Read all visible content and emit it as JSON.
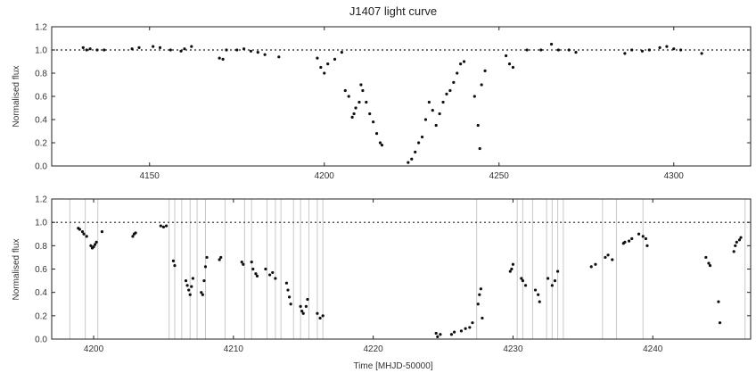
{
  "title": "J1407 light curve",
  "xlabel": "Time [MHJD-50000]",
  "ylabel": "Normalised flux",
  "chart_data": [
    {
      "type": "scatter",
      "title": "J1407 light curve",
      "ylabel": "Normalised flux",
      "xlim": [
        4122,
        4322
      ],
      "ylim": [
        0.0,
        1.2
      ],
      "xticks": [
        4150,
        4200,
        4250,
        4300
      ],
      "yticks": [
        0.0,
        0.2,
        0.4,
        0.6,
        0.8,
        1.0,
        1.2
      ],
      "reference_line": 1.0,
      "series": [
        {
          "points": [
            [
              4131,
              1.02
            ],
            [
              4132,
              1.0
            ],
            [
              4133,
              1.01
            ],
            [
              4135,
              1.0
            ],
            [
              4137,
              1.0
            ],
            [
              4145,
              1.01
            ],
            [
              4147,
              1.02
            ],
            [
              4151,
              1.03
            ],
            [
              4153,
              1.02
            ],
            [
              4156,
              1.0
            ],
            [
              4159,
              0.99
            ],
            [
              4160,
              1.01
            ],
            [
              4162,
              1.03
            ],
            [
              4170,
              0.93
            ],
            [
              4171,
              0.92
            ],
            [
              4172,
              1.0
            ],
            [
              4175,
              1.0
            ],
            [
              4177,
              1.01
            ],
            [
              4179,
              0.99
            ],
            [
              4181,
              0.98
            ],
            [
              4183,
              0.96
            ],
            [
              4187,
              0.94
            ],
            [
              4198,
              0.93
            ],
            [
              4199,
              0.85
            ],
            [
              4200,
              0.8
            ],
            [
              4201,
              0.88
            ],
            [
              4203,
              0.92
            ],
            [
              4205,
              0.98
            ],
            [
              4206,
              0.65
            ],
            [
              4207,
              0.6
            ],
            [
              4208,
              0.42
            ],
            [
              4208.5,
              0.45
            ],
            [
              4209,
              0.5
            ],
            [
              4210,
              0.55
            ],
            [
              4210.5,
              0.7
            ],
            [
              4211,
              0.65
            ],
            [
              4212,
              0.55
            ],
            [
              4213,
              0.45
            ],
            [
              4214,
              0.38
            ],
            [
              4215,
              0.28
            ],
            [
              4216,
              0.2
            ],
            [
              4216.5,
              0.18
            ],
            [
              4224,
              0.03
            ],
            [
              4225,
              0.06
            ],
            [
              4226,
              0.12
            ],
            [
              4227,
              0.2
            ],
            [
              4228,
              0.25
            ],
            [
              4229,
              0.4
            ],
            [
              4230,
              0.55
            ],
            [
              4231,
              0.48
            ],
            [
              4232,
              0.35
            ],
            [
              4233,
              0.45
            ],
            [
              4234,
              0.55
            ],
            [
              4235,
              0.62
            ],
            [
              4236,
              0.65
            ],
            [
              4237,
              0.72
            ],
            [
              4238,
              0.8
            ],
            [
              4239,
              0.88
            ],
            [
              4240,
              0.9
            ],
            [
              4243,
              0.6
            ],
            [
              4244,
              0.35
            ],
            [
              4244.5,
              0.15
            ],
            [
              4245,
              0.7
            ],
            [
              4246,
              0.82
            ],
            [
              4252,
              0.95
            ],
            [
              4253,
              0.88
            ],
            [
              4254,
              0.85
            ],
            [
              4258,
              1.0
            ],
            [
              4262,
              1.0
            ],
            [
              4265,
              1.05
            ],
            [
              4267,
              1.0
            ],
            [
              4270,
              1.0
            ],
            [
              4272,
              0.98
            ],
            [
              4286,
              0.97
            ],
            [
              4288,
              1.0
            ],
            [
              4291,
              0.99
            ],
            [
              4293,
              1.0
            ],
            [
              4296,
              1.02
            ],
            [
              4298,
              1.03
            ],
            [
              4300,
              1.01
            ],
            [
              4302,
              1.0
            ],
            [
              4308,
              0.97
            ]
          ]
        }
      ]
    },
    {
      "type": "scatter",
      "xlabel": "Time [MHJD-50000]",
      "ylabel": "Normalised flux",
      "xlim": [
        4197,
        4247
      ],
      "ylim": [
        0.0,
        1.2
      ],
      "xticks": [
        4200,
        4210,
        4220,
        4230,
        4240
      ],
      "yticks": [
        0.0,
        0.2,
        0.4,
        0.6,
        0.8,
        1.0,
        1.2
      ],
      "reference_line": 1.0,
      "vertical_markers": [
        4198.3,
        4199.4,
        4200.3,
        4205.4,
        4205.8,
        4206.3,
        4206.9,
        4207.4,
        4208.0,
        4209.4,
        4210.8,
        4211.3,
        4212.4,
        4213.0,
        4213.4,
        4214.3,
        4214.8,
        4215.4,
        4216.0,
        4216.4,
        4227.4,
        4230.3,
        4230.7,
        4231.4,
        4232.4,
        4232.8,
        4233.2,
        4233.6,
        4236.4,
        4237.4,
        4239.3,
        4246.6
      ],
      "series": [
        {
          "points": [
            [
              4198.9,
              0.95
            ],
            [
              4199.0,
              0.94
            ],
            [
              4199.2,
              0.92
            ],
            [
              4199.3,
              0.9
            ],
            [
              4199.5,
              0.88
            ],
            [
              4199.8,
              0.8
            ],
            [
              4199.9,
              0.78
            ],
            [
              4200.0,
              0.79
            ],
            [
              4200.1,
              0.81
            ],
            [
              4200.2,
              0.83
            ],
            [
              4200.6,
              0.92
            ],
            [
              4202.8,
              0.88
            ],
            [
              4202.9,
              0.9
            ],
            [
              4203.0,
              0.91
            ],
            [
              4204.8,
              0.97
            ],
            [
              4205.0,
              0.96
            ],
            [
              4205.2,
              0.97
            ],
            [
              4205.7,
              0.67
            ],
            [
              4205.8,
              0.63
            ],
            [
              4206.6,
              0.5
            ],
            [
              4206.7,
              0.46
            ],
            [
              4206.8,
              0.42
            ],
            [
              4206.9,
              0.38
            ],
            [
              4207.0,
              0.45
            ],
            [
              4207.1,
              0.52
            ],
            [
              4207.7,
              0.4
            ],
            [
              4207.8,
              0.38
            ],
            [
              4207.9,
              0.5
            ],
            [
              4208.0,
              0.62
            ],
            [
              4208.1,
              0.7
            ],
            [
              4209.0,
              0.68
            ],
            [
              4209.1,
              0.7
            ],
            [
              4210.6,
              0.66
            ],
            [
              4210.7,
              0.64
            ],
            [
              4211.3,
              0.66
            ],
            [
              4211.4,
              0.6
            ],
            [
              4211.6,
              0.56
            ],
            [
              4211.7,
              0.54
            ],
            [
              4212.3,
              0.6
            ],
            [
              4212.6,
              0.55
            ],
            [
              4212.8,
              0.57
            ],
            [
              4213.0,
              0.52
            ],
            [
              4213.8,
              0.48
            ],
            [
              4213.9,
              0.42
            ],
            [
              4214.0,
              0.36
            ],
            [
              4214.1,
              0.3
            ],
            [
              4214.8,
              0.28
            ],
            [
              4214.9,
              0.24
            ],
            [
              4215.0,
              0.22
            ],
            [
              4215.2,
              0.28
            ],
            [
              4215.3,
              0.34
            ],
            [
              4216.0,
              0.22
            ],
            [
              4216.2,
              0.18
            ],
            [
              4216.4,
              0.2
            ],
            [
              4224.5,
              0.05
            ],
            [
              4224.6,
              0.02
            ],
            [
              4224.8,
              0.04
            ],
            [
              4225.6,
              0.04
            ],
            [
              4225.8,
              0.06
            ],
            [
              4226.3,
              0.07
            ],
            [
              4226.6,
              0.09
            ],
            [
              4226.9,
              0.1
            ],
            [
              4227.1,
              0.14
            ],
            [
              4227.5,
              0.3
            ],
            [
              4227.6,
              0.38
            ],
            [
              4227.7,
              0.43
            ],
            [
              4227.8,
              0.18
            ],
            [
              4229.8,
              0.58
            ],
            [
              4229.9,
              0.6
            ],
            [
              4230.0,
              0.64
            ],
            [
              4230.6,
              0.52
            ],
            [
              4230.7,
              0.5
            ],
            [
              4230.9,
              0.46
            ],
            [
              4231.6,
              0.42
            ],
            [
              4231.8,
              0.38
            ],
            [
              4231.9,
              0.32
            ],
            [
              4232.5,
              0.52
            ],
            [
              4232.8,
              0.46
            ],
            [
              4233.0,
              0.5
            ],
            [
              4233.2,
              0.58
            ],
            [
              4235.6,
              0.62
            ],
            [
              4235.9,
              0.64
            ],
            [
              4236.6,
              0.7
            ],
            [
              4236.8,
              0.72
            ],
            [
              4237.1,
              0.68
            ],
            [
              4237.9,
              0.82
            ],
            [
              4238.0,
              0.83
            ],
            [
              4238.3,
              0.84
            ],
            [
              4238.5,
              0.86
            ],
            [
              4239.0,
              0.9
            ],
            [
              4239.3,
              0.88
            ],
            [
              4239.5,
              0.86
            ],
            [
              4239.6,
              0.8
            ],
            [
              4243.8,
              0.7
            ],
            [
              4244.0,
              0.65
            ],
            [
              4244.1,
              0.63
            ],
            [
              4244.7,
              0.32
            ],
            [
              4244.8,
              0.14
            ],
            [
              4245.8,
              0.75
            ],
            [
              4245.9,
              0.8
            ],
            [
              4246.0,
              0.83
            ],
            [
              4246.2,
              0.85
            ],
            [
              4246.3,
              0.87
            ]
          ]
        }
      ]
    }
  ]
}
